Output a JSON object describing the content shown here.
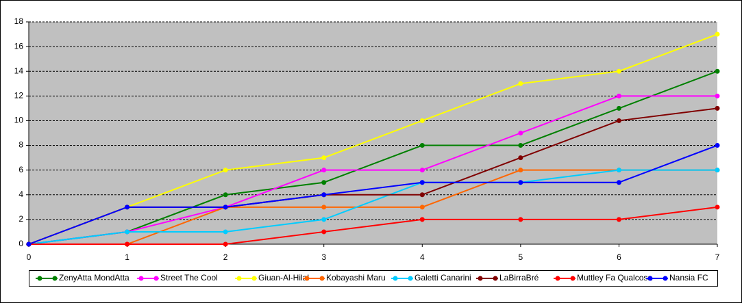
{
  "chart_data": {
    "type": "line",
    "x": [
      0,
      1,
      2,
      3,
      4,
      5,
      6,
      7
    ],
    "xlim": [
      0,
      7
    ],
    "xticks": [
      0,
      1,
      2,
      3,
      4,
      5,
      6,
      7
    ],
    "ylim": [
      0,
      18
    ],
    "yticks": [
      0,
      2,
      4,
      6,
      8,
      10,
      12,
      14,
      16,
      18
    ],
    "grid": true,
    "legend": "bottom",
    "plot_background": "#c0c0c0",
    "series": [
      {
        "name": "ZenyAtta MondAtta",
        "color": "#008000",
        "values": [
          0,
          1,
          4,
          5,
          8,
          8,
          11,
          14
        ]
      },
      {
        "name": "Street The Cool",
        "color": "#ff00ff",
        "values": [
          0,
          1,
          3,
          6,
          6,
          9,
          12,
          12
        ]
      },
      {
        "name": "Giuan-Al-Hilal",
        "color": "#ffff00",
        "values": [
          0,
          3,
          6,
          7,
          10,
          13,
          14,
          17
        ]
      },
      {
        "name": "Kobayashi Maru",
        "color": "#ff6600",
        "values": [
          0,
          0,
          3,
          3,
          3,
          6,
          6,
          6
        ]
      },
      {
        "name": "Galetti Canarini",
        "color": "#00ccff",
        "values": [
          0,
          1,
          1,
          2,
          5,
          5,
          6,
          6
        ]
      },
      {
        "name": "LaBirraBré",
        "color": "#800000",
        "values": [
          0,
          3,
          3,
          4,
          4,
          7,
          10,
          11
        ]
      },
      {
        "name": "Muttley Fa Qualcosa",
        "color": "#ff0000",
        "values": [
          0,
          0,
          0,
          1,
          2,
          2,
          2,
          3
        ]
      },
      {
        "name": "Nansia FC",
        "color": "#0000ff",
        "values": [
          0,
          3,
          3,
          4,
          5,
          5,
          5,
          8
        ]
      }
    ]
  }
}
